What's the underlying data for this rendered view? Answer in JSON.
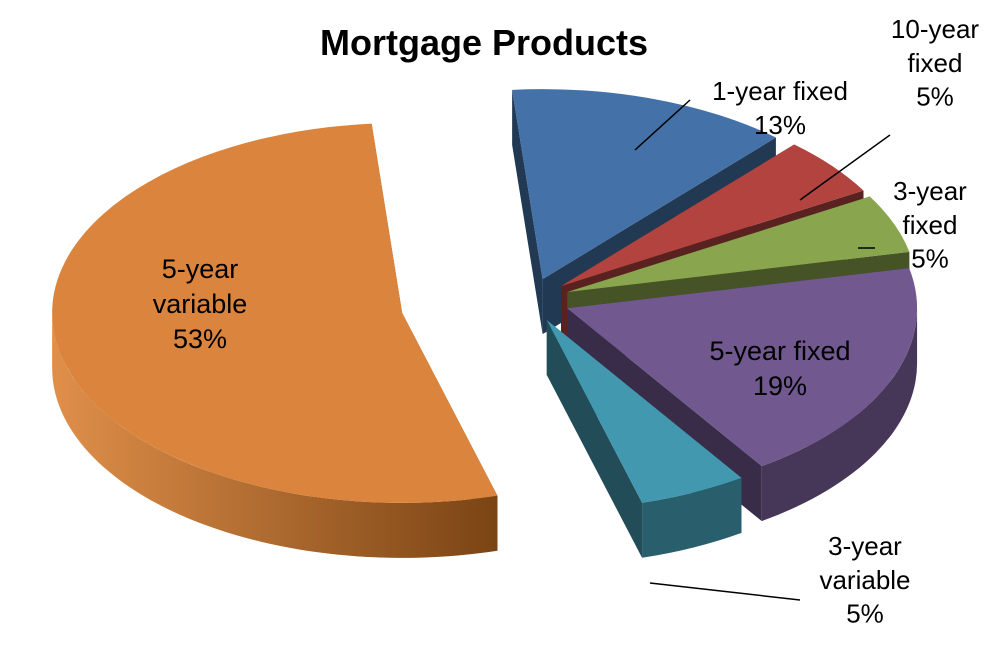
{
  "chart_data": {
    "type": "pie",
    "title": "Mortgage Products",
    "slices": [
      {
        "name": "1-year fixed",
        "value": 13,
        "label": "13%",
        "color": "#4472a8",
        "name_lines": [
          "1-year fixed"
        ]
      },
      {
        "name": "10-year fixed",
        "value": 5,
        "label": "5%",
        "color": "#b2433f",
        "name_lines": [
          "10-year",
          "fixed"
        ]
      },
      {
        "name": "3-year fixed",
        "value": 5,
        "label": "5%",
        "color": "#89a54e",
        "name_lines": [
          "3-year",
          "fixed"
        ]
      },
      {
        "name": "5-year fixed",
        "value": 19,
        "label": "19%",
        "color": "#71588f",
        "name_lines": [
          "5-year fixed"
        ]
      },
      {
        "name": "3-year variable",
        "value": 5,
        "label": "5%",
        "color": "#4298af",
        "name_lines": [
          "3-year",
          "variable"
        ]
      },
      {
        "name": "5-year variable",
        "value": 53,
        "label": "53%",
        "color": "#db843d",
        "name_lines": [
          "5-year",
          "variable"
        ]
      }
    ],
    "exploded": true,
    "three_d": true
  }
}
